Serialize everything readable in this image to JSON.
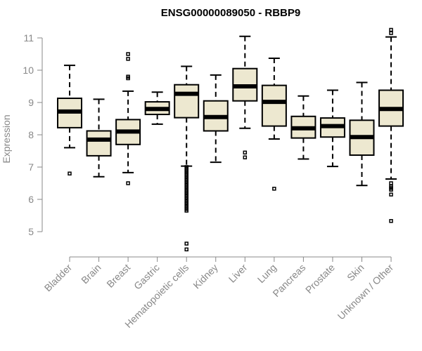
{
  "chart_data": {
    "type": "boxplot",
    "title": "ENSG00000089050 - RBBP9",
    "xlabel": "",
    "ylabel": "Expression",
    "ylim": [
      4.3,
      11.3
    ],
    "yticks": [
      5,
      6,
      7,
      8,
      9,
      10,
      11
    ],
    "box_fill": "#EDE8D0",
    "categories": [
      "Bladder",
      "Brain",
      "Breast",
      "Gastric",
      "Hematopoietic cells",
      "Kidney",
      "Liver",
      "Lung",
      "Pancreas",
      "Prostate",
      "Skin",
      "Unknown / Other"
    ],
    "boxes": [
      {
        "q1": 8.22,
        "median": 8.72,
        "q3": 9.13,
        "wlo": 7.6,
        "whi": 10.15,
        "outliers": [
          6.8
        ]
      },
      {
        "q1": 7.35,
        "median": 7.85,
        "q3": 8.12,
        "wlo": 6.7,
        "whi": 9.1,
        "outliers": []
      },
      {
        "q1": 7.7,
        "median": 8.1,
        "q3": 8.47,
        "wlo": 6.83,
        "whi": 9.35,
        "outliers": [
          6.5,
          9.75,
          9.8,
          10.35,
          10.5
        ]
      },
      {
        "q1": 8.63,
        "median": 8.8,
        "q3": 9.02,
        "wlo": 8.33,
        "whi": 9.32,
        "outliers": []
      },
      {
        "q1": 8.53,
        "median": 9.27,
        "q3": 9.55,
        "wlo": 7.03,
        "whi": 10.12,
        "outliers": [
          7.0,
          6.95,
          6.9,
          6.85,
          6.8,
          6.75,
          6.7,
          6.65,
          6.6,
          6.55,
          6.5,
          6.45,
          6.4,
          6.35,
          6.3,
          6.25,
          6.2,
          6.15,
          6.1,
          6.05,
          6.0,
          5.95,
          5.9,
          5.85,
          5.8,
          5.75,
          5.7,
          5.65,
          4.63,
          4.45
        ]
      },
      {
        "q1": 8.12,
        "median": 8.55,
        "q3": 9.05,
        "wlo": 7.15,
        "whi": 9.85,
        "outliers": []
      },
      {
        "q1": 9.05,
        "median": 9.5,
        "q3": 10.05,
        "wlo": 8.2,
        "whi": 11.05,
        "outliers": [
          7.45,
          7.3
        ]
      },
      {
        "q1": 8.27,
        "median": 9.02,
        "q3": 9.53,
        "wlo": 7.87,
        "whi": 10.37,
        "outliers": [
          6.33
        ]
      },
      {
        "q1": 7.9,
        "median": 8.2,
        "q3": 8.57,
        "wlo": 7.25,
        "whi": 9.2,
        "outliers": []
      },
      {
        "q1": 7.93,
        "median": 8.27,
        "q3": 8.52,
        "wlo": 7.02,
        "whi": 9.38,
        "outliers": []
      },
      {
        "q1": 7.37,
        "median": 7.93,
        "q3": 8.45,
        "wlo": 6.43,
        "whi": 9.62,
        "outliers": []
      },
      {
        "q1": 8.27,
        "median": 8.8,
        "q3": 9.38,
        "wlo": 6.63,
        "whi": 11.03,
        "outliers": [
          11.25,
          11.15,
          6.5,
          6.4,
          6.35,
          6.3,
          6.15,
          5.33
        ]
      }
    ]
  }
}
